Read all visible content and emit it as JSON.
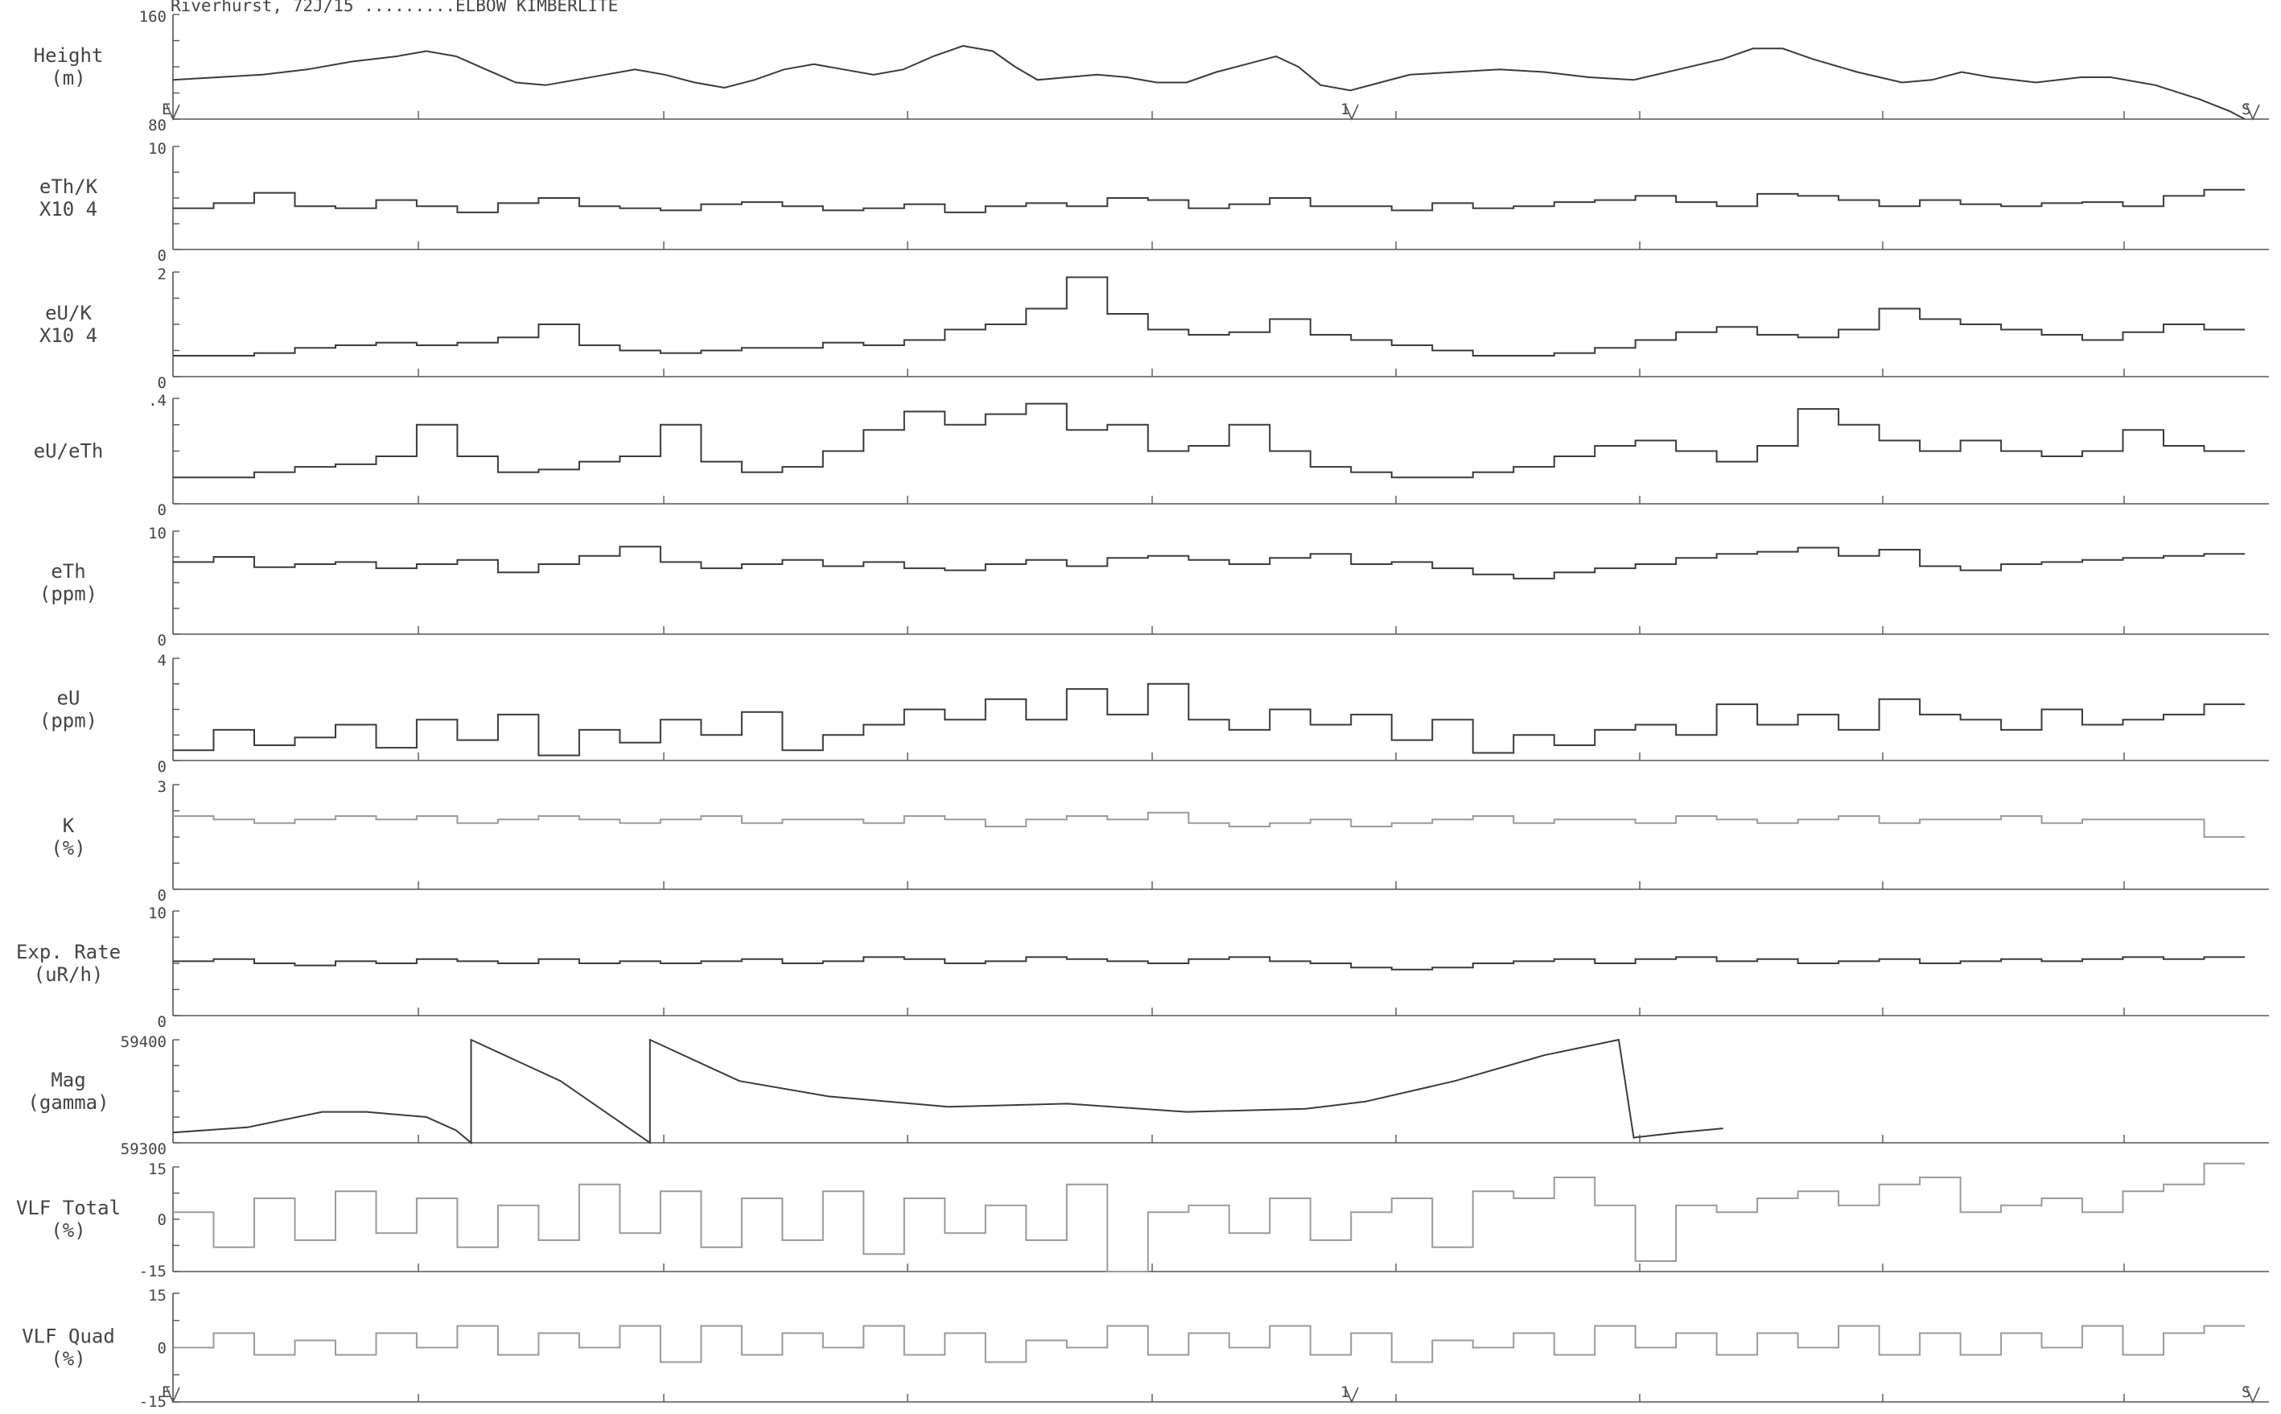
{
  "title": "Riverhurst, 72J/15 .........ELBOW KIMBERLITE",
  "fiducials": {
    "start": "E",
    "mid": "1",
    "end": "S"
  },
  "colors": {
    "ink": "#3a3a3a",
    "light_ink": "#9a9a9a",
    "axis": "#555555"
  },
  "chart_data": [
    {
      "type": "line",
      "ylabel": [
        "Height",
        "(m)"
      ],
      "ylim": [
        80,
        160
      ],
      "tick_labels": [
        "160",
        "80"
      ],
      "x": "distance along flight line (fraction 0-1)",
      "series": [
        {
          "values": [
            [
              0.0,
              110
            ],
            [
              0.03,
              112
            ],
            [
              0.06,
              114
            ],
            [
              0.09,
              118
            ],
            [
              0.12,
              124
            ],
            [
              0.15,
              128
            ],
            [
              0.17,
              132
            ],
            [
              0.19,
              128
            ],
            [
              0.21,
              118
            ],
            [
              0.23,
              108
            ],
            [
              0.25,
              106
            ],
            [
              0.27,
              110
            ],
            [
              0.29,
              114
            ],
            [
              0.31,
              118
            ],
            [
              0.33,
              114
            ],
            [
              0.35,
              108
            ],
            [
              0.37,
              104
            ],
            [
              0.39,
              110
            ],
            [
              0.41,
              118
            ],
            [
              0.43,
              122
            ],
            [
              0.45,
              118
            ],
            [
              0.47,
              114
            ],
            [
              0.49,
              118
            ],
            [
              0.51,
              128
            ],
            [
              0.53,
              136
            ],
            [
              0.55,
              132
            ],
            [
              0.565,
              120
            ],
            [
              0.58,
              110
            ],
            [
              0.6,
              112
            ],
            [
              0.62,
              114
            ],
            [
              0.64,
              112
            ],
            [
              0.66,
              108
            ],
            [
              0.68,
              108
            ],
            [
              0.7,
              116
            ],
            [
              0.72,
              122
            ],
            [
              0.74,
              128
            ],
            [
              0.755,
              120
            ],
            [
              0.77,
              106
            ],
            [
              0.79,
              102
            ],
            [
              0.81,
              108
            ],
            [
              0.83,
              114
            ],
            [
              0.86,
              116
            ],
            [
              0.89,
              118
            ],
            [
              0.92,
              116
            ],
            [
              0.95,
              112
            ],
            [
              0.98,
              110
            ],
            [
              1.01,
              118
            ],
            [
              1.04,
              126
            ],
            [
              1.06,
              134
            ],
            [
              1.08,
              134
            ],
            [
              1.1,
              126
            ],
            [
              1.13,
              116
            ],
            [
              1.16,
              108
            ],
            [
              1.18,
              110
            ],
            [
              1.2,
              116
            ],
            [
              1.22,
              112
            ],
            [
              1.25,
              108
            ],
            [
              1.28,
              112
            ],
            [
              1.3,
              112
            ],
            [
              1.33,
              106
            ],
            [
              1.36,
              95
            ],
            [
              1.38,
              86
            ],
            [
              1.39,
              80
            ]
          ]
        }
      ]
    },
    {
      "type": "line",
      "ylabel": [
        "eTh/K",
        "X10 4"
      ],
      "ylim": [
        0,
        10
      ],
      "tick_labels": [
        "10",
        "0"
      ],
      "series": [
        {
          "values": [
            4,
            4.5,
            5.5,
            4.2,
            4,
            4.8,
            4.2,
            3.6,
            4.5,
            5,
            4.2,
            4,
            3.8,
            4.4,
            4.6,
            4.2,
            3.8,
            4,
            4.4,
            3.6,
            4.2,
            4.5,
            4.2,
            5,
            4.8,
            4,
            4.4,
            5,
            4.2,
            4.2,
            3.8,
            4.5,
            4,
            4.2,
            4.6,
            4.8,
            5.2,
            4.6,
            4.2,
            5.4,
            5.2,
            4.8,
            4.2,
            4.8,
            4.4,
            4.2,
            4.5,
            4.6,
            4.2,
            5.2,
            5.8
          ]
        }
      ]
    },
    {
      "type": "line",
      "ylabel": [
        "eU/K",
        "X10 4"
      ],
      "ylim": [
        0,
        2
      ],
      "tick_labels": [
        "2",
        "0"
      ],
      "series": [
        {
          "values": [
            0.4,
            0.4,
            0.45,
            0.55,
            0.6,
            0.65,
            0.6,
            0.65,
            0.75,
            1.0,
            0.6,
            0.5,
            0.45,
            0.5,
            0.55,
            0.55,
            0.65,
            0.6,
            0.7,
            0.9,
            1.0,
            1.3,
            1.9,
            1.2,
            0.9,
            0.8,
            0.85,
            1.1,
            0.8,
            0.7,
            0.6,
            0.5,
            0.4,
            0.4,
            0.45,
            0.55,
            0.7,
            0.85,
            0.95,
            0.8,
            0.75,
            0.9,
            1.3,
            1.1,
            1.0,
            0.9,
            0.8,
            0.7,
            0.85,
            1.0,
            0.9
          ]
        }
      ]
    },
    {
      "type": "line",
      "ylabel": [
        "eU/eTh"
      ],
      "ylim": [
        0,
        0.4
      ],
      "tick_labels": [
        ".4",
        "0"
      ],
      "series": [
        {
          "values": [
            0.1,
            0.1,
            0.12,
            0.14,
            0.15,
            0.18,
            0.3,
            0.18,
            0.12,
            0.13,
            0.16,
            0.18,
            0.3,
            0.16,
            0.12,
            0.14,
            0.2,
            0.28,
            0.35,
            0.3,
            0.34,
            0.38,
            0.28,
            0.3,
            0.2,
            0.22,
            0.3,
            0.2,
            0.14,
            0.12,
            0.1,
            0.1,
            0.12,
            0.14,
            0.18,
            0.22,
            0.24,
            0.2,
            0.16,
            0.22,
            0.36,
            0.3,
            0.24,
            0.2,
            0.24,
            0.2,
            0.18,
            0.2,
            0.28,
            0.22,
            0.2
          ]
        }
      ]
    },
    {
      "type": "line",
      "ylabel": [
        "eTh",
        "(ppm)"
      ],
      "ylim": [
        0,
        10
      ],
      "tick_labels": [
        "10",
        "0"
      ],
      "series": [
        {
          "values": [
            7,
            7.5,
            6.5,
            6.8,
            7,
            6.4,
            6.8,
            7.2,
            6,
            6.8,
            7.6,
            8.5,
            7,
            6.4,
            6.8,
            7.2,
            6.6,
            7,
            6.4,
            6.2,
            6.8,
            7.2,
            6.6,
            7.4,
            7.6,
            7.2,
            6.8,
            7.4,
            7.8,
            6.8,
            7,
            6.4,
            5.8,
            5.4,
            6,
            6.4,
            6.8,
            7.4,
            7.8,
            8,
            8.4,
            7.6,
            8.2,
            6.6,
            6.2,
            6.8,
            7,
            7.2,
            7.4,
            7.6,
            7.8
          ]
        }
      ]
    },
    {
      "type": "line",
      "ylabel": [
        "eU",
        "(ppm)"
      ],
      "ylim": [
        0,
        4
      ],
      "tick_labels": [
        "4",
        "0"
      ],
      "series": [
        {
          "values": [
            0.4,
            1.2,
            0.6,
            0.9,
            1.4,
            0.5,
            1.6,
            0.8,
            1.8,
            0.2,
            1.2,
            0.7,
            1.6,
            1.0,
            1.9,
            0.4,
            1.0,
            1.4,
            2.0,
            1.6,
            2.4,
            1.6,
            2.8,
            1.8,
            3.0,
            1.6,
            1.2,
            2.0,
            1.4,
            1.8,
            0.8,
            1.6,
            0.3,
            1.0,
            0.6,
            1.2,
            1.4,
            1.0,
            2.2,
            1.4,
            1.8,
            1.2,
            2.4,
            1.8,
            1.6,
            1.2,
            2.0,
            1.4,
            1.6,
            1.8,
            2.2
          ]
        }
      ]
    },
    {
      "type": "line",
      "ylabel": [
        "K",
        "(%)"
      ],
      "ylim": [
        0,
        3
      ],
      "tick_labels": [
        "3",
        "0"
      ],
      "series": [
        {
          "values": [
            2.1,
            2.0,
            1.9,
            2.0,
            2.1,
            2.0,
            2.1,
            1.9,
            2.0,
            2.1,
            2.0,
            1.9,
            2.0,
            2.1,
            1.9,
            2.0,
            2.0,
            1.9,
            2.1,
            2.0,
            1.8,
            2.0,
            2.1,
            2.0,
            2.2,
            1.9,
            1.8,
            1.9,
            2.0,
            1.8,
            1.9,
            2.0,
            2.1,
            1.9,
            2.0,
            2.0,
            1.9,
            2.1,
            2.0,
            1.9,
            2.0,
            2.1,
            1.9,
            2.0,
            2.0,
            2.1,
            1.9,
            2.0,
            2.0,
            2.0,
            1.5
          ]
        }
      ]
    },
    {
      "type": "line",
      "ylabel": [
        "Exp. Rate",
        "(uR/h)"
      ],
      "ylim": [
        0,
        10
      ],
      "tick_labels": [
        "10",
        "0"
      ],
      "series": [
        {
          "values": [
            5.2,
            5.4,
            5.0,
            4.8,
            5.2,
            5.0,
            5.4,
            5.2,
            5.0,
            5.4,
            5.0,
            5.2,
            5.0,
            5.2,
            5.4,
            5.0,
            5.2,
            5.6,
            5.4,
            5.0,
            5.2,
            5.6,
            5.4,
            5.2,
            5.0,
            5.4,
            5.6,
            5.2,
            5.0,
            4.6,
            4.4,
            4.6,
            5.0,
            5.2,
            5.4,
            5.0,
            5.4,
            5.6,
            5.2,
            5.4,
            5.0,
            5.2,
            5.4,
            5.0,
            5.2,
            5.4,
            5.2,
            5.4,
            5.6,
            5.4,
            5.6
          ]
        }
      ]
    },
    {
      "type": "line",
      "ylabel": [
        "Mag",
        "(gamma)"
      ],
      "ylim": [
        59300,
        59400
      ],
      "tick_labels": [
        "59400",
        "59300"
      ],
      "series": [
        {
          "values": [
            [
              0.0,
              59310
            ],
            [
              0.05,
              59315
            ],
            [
              0.1,
              59330
            ],
            [
              0.13,
              59330
            ],
            [
              0.17,
              59325
            ],
            [
              0.19,
              59312
            ],
            [
              0.2,
              59300
            ],
            [
              0.2,
              59400
            ],
            [
              0.26,
              59360
            ],
            [
              0.32,
              59300
            ],
            [
              0.32,
              59400
            ],
            [
              0.38,
              59360
            ],
            [
              0.44,
              59345
            ],
            [
              0.52,
              59335
            ],
            [
              0.6,
              59338
            ],
            [
              0.68,
              59330
            ],
            [
              0.76,
              59333
            ],
            [
              0.8,
              59340
            ],
            [
              0.86,
              59360
            ],
            [
              0.92,
              59385
            ],
            [
              0.97,
              59400
            ],
            [
              0.98,
              59305
            ],
            [
              1.01,
              59310
            ],
            [
              1.04,
              59314
            ]
          ]
        }
      ]
    },
    {
      "type": "line",
      "ylabel": [
        "VLF Total",
        "(%)"
      ],
      "ylim": [
        -15,
        15
      ],
      "tick_labels": [
        "15",
        "0",
        "-15"
      ],
      "series": [
        {
          "values": [
            2,
            -8,
            6,
            -6,
            8,
            -4,
            6,
            -8,
            4,
            -6,
            10,
            -4,
            8,
            -8,
            6,
            -6,
            8,
            -10,
            6,
            -4,
            4,
            -6,
            10,
            -15,
            2,
            4,
            -4,
            6,
            -6,
            2,
            6,
            -8,
            8,
            6,
            12,
            4,
            -12,
            4,
            2,
            6,
            8,
            4,
            10,
            12,
            2,
            4,
            6,
            2,
            8,
            10,
            16
          ]
        }
      ]
    },
    {
      "type": "line",
      "ylabel": [
        "VLF Quad",
        "(%)"
      ],
      "ylim": [
        -15,
        15
      ],
      "tick_labels": [
        "15",
        "0",
        "-15"
      ],
      "series": [
        {
          "values": [
            0,
            4,
            -2,
            2,
            -2,
            4,
            0,
            6,
            -2,
            4,
            0,
            6,
            -4,
            6,
            -2,
            4,
            0,
            6,
            -2,
            4,
            -4,
            2,
            0,
            6,
            -2,
            4,
            0,
            6,
            -2,
            4,
            -4,
            2,
            0,
            4,
            -2,
            6,
            0,
            4,
            -2,
            4,
            0,
            6,
            -2,
            4,
            -2,
            4,
            0,
            6,
            -2,
            4,
            6
          ]
        }
      ]
    }
  ]
}
